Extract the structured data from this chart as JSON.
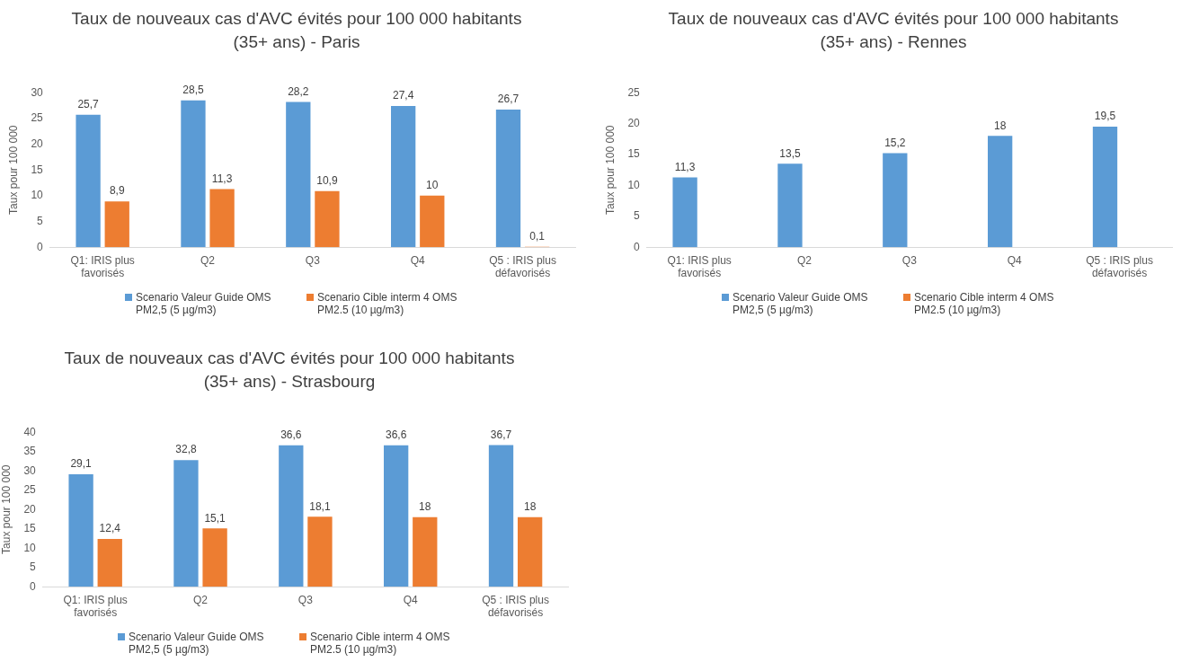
{
  "chart_data": [
    {
      "type": "bar",
      "title": "Taux de nouveaux cas d'AVC évités pour 100 000 habitants (35+ ans) - Paris",
      "ylabel": "Taux pour 100 000",
      "categories": [
        "Q1: IRIS plus favorisés",
        "Q2",
        "Q3",
        "Q4",
        "Q5 : IRIS plus défavorisés"
      ],
      "series": [
        {
          "name": "Scenario Valeur Guide OMS PM2,5 (5 µg/m3)",
          "color": "#5b9bd5",
          "values": [
            25.7,
            28.5,
            28.2,
            27.4,
            26.7
          ],
          "value_labels": [
            "25,7",
            "28,5",
            "28,2",
            "27,4",
            "26,7"
          ]
        },
        {
          "name": "Scenario Cible interm 4 OMS PM2.5 (10 µg/m3)",
          "color": "#ed7d31",
          "values": [
            8.9,
            11.3,
            10.9,
            10,
            0.1
          ],
          "value_labels": [
            "8,9",
            "11,3",
            "10,9",
            "10",
            "0,1"
          ]
        }
      ],
      "ylim": [
        0,
        30
      ],
      "yticks": [
        0,
        5,
        10,
        15,
        20,
        25,
        30
      ],
      "grid": false,
      "legend": "bottom"
    },
    {
      "type": "bar",
      "title": "Taux de nouveaux cas d'AVC évités pour 100 000 habitants (35+ ans) - Rennes",
      "ylabel": "Taux pour 100 000",
      "categories": [
        "Q1: IRIS plus favorisés",
        "Q2",
        "Q3",
        "Q4",
        "Q5 : IRIS plus défavorisés"
      ],
      "series": [
        {
          "name": "Scenario Valeur Guide OMS PM2,5 (5 µg/m3)",
          "color": "#5b9bd5",
          "values": [
            11.3,
            13.5,
            15.2,
            18,
            19.5
          ],
          "value_labels": [
            "11,3",
            "13,5",
            "15,2",
            "18",
            "19,5"
          ]
        },
        {
          "name": "Scenario Cible interm 4 OMS PM2.5 (10 µg/m3)",
          "color": "#ed7d31",
          "values": [
            null,
            null,
            null,
            null,
            null
          ]
        }
      ],
      "ylim": [
        0,
        25
      ],
      "yticks": [
        0,
        5,
        10,
        15,
        20,
        25
      ],
      "grid": false,
      "legend": "bottom"
    },
    {
      "type": "bar",
      "title": "Taux de nouveaux cas d'AVC évités pour 100 000 habitants (35+ ans) - Strasbourg",
      "ylabel": "Taux pour 100 000",
      "categories": [
        "Q1: IRIS plus favorisés",
        "Q2",
        "Q3",
        "Q4",
        "Q5 : IRIS plus défavorisés"
      ],
      "series": [
        {
          "name": "Scenario Valeur Guide OMS PM2,5 (5 µg/m3)",
          "color": "#5b9bd5",
          "values": [
            29.1,
            32.8,
            36.6,
            36.6,
            36.7
          ],
          "value_labels": [
            "29,1",
            "32,8",
            "36,6",
            "36,6",
            "36,7"
          ]
        },
        {
          "name": "Scenario Cible interm 4 OMS PM2.5 (10 µg/m3)",
          "color": "#ed7d31",
          "values": [
            12.4,
            15.1,
            18.1,
            18,
            18
          ],
          "value_labels": [
            "12,4",
            "15,1",
            "18,1",
            "18",
            "18"
          ]
        }
      ],
      "ylim": [
        0,
        40
      ],
      "yticks": [
        0,
        5,
        10,
        15,
        20,
        25,
        30,
        35,
        40
      ],
      "grid": false,
      "legend": "bottom"
    }
  ]
}
